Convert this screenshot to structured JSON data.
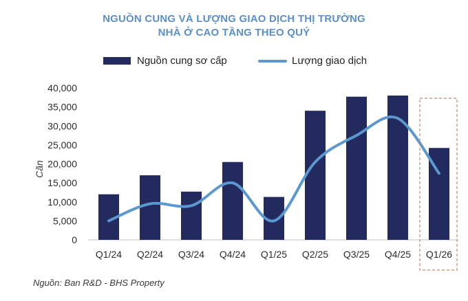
{
  "title_line1": "NGUỒN CUNG VÀ LƯỢNG GIAO DỊCH THỊ TRƯỜNG",
  "title_line2": "NHÀ Ở CAO TẦNG THEO QUÝ",
  "source": "Nguồn: Ban R&D - BHS Property",
  "colors": {
    "bar": "#232a5e",
    "line": "#5b98cf",
    "title": "#5b8fc7",
    "highlight": "#c9826b"
  },
  "chart_data": {
    "type": "bar",
    "categories": [
      "Q1/24",
      "Q2/24",
      "Q3/24",
      "Q4/24",
      "Q1/25",
      "Q2/25",
      "Q3/25",
      "Q4/25",
      "Q1/26"
    ],
    "series": [
      {
        "name": "Nguồn cung sơ cấp",
        "type": "bar",
        "values": [
          12000,
          17000,
          12700,
          20500,
          11300,
          34000,
          37700,
          38000,
          24200
        ]
      },
      {
        "name": "Lượng giao dịch",
        "type": "line",
        "values": [
          5000,
          9500,
          9000,
          15000,
          5000,
          20500,
          27500,
          32000,
          17500
        ]
      }
    ],
    "ylabel": "Căn",
    "ylim": [
      0,
      40000
    ],
    "yticks": [
      "0",
      "5,000",
      "10,000",
      "15,000",
      "20,000",
      "25,000",
      "30,000",
      "35,000",
      "40,000"
    ],
    "highlight_category": "Q1/26",
    "grid": false,
    "legend_position": "top"
  }
}
